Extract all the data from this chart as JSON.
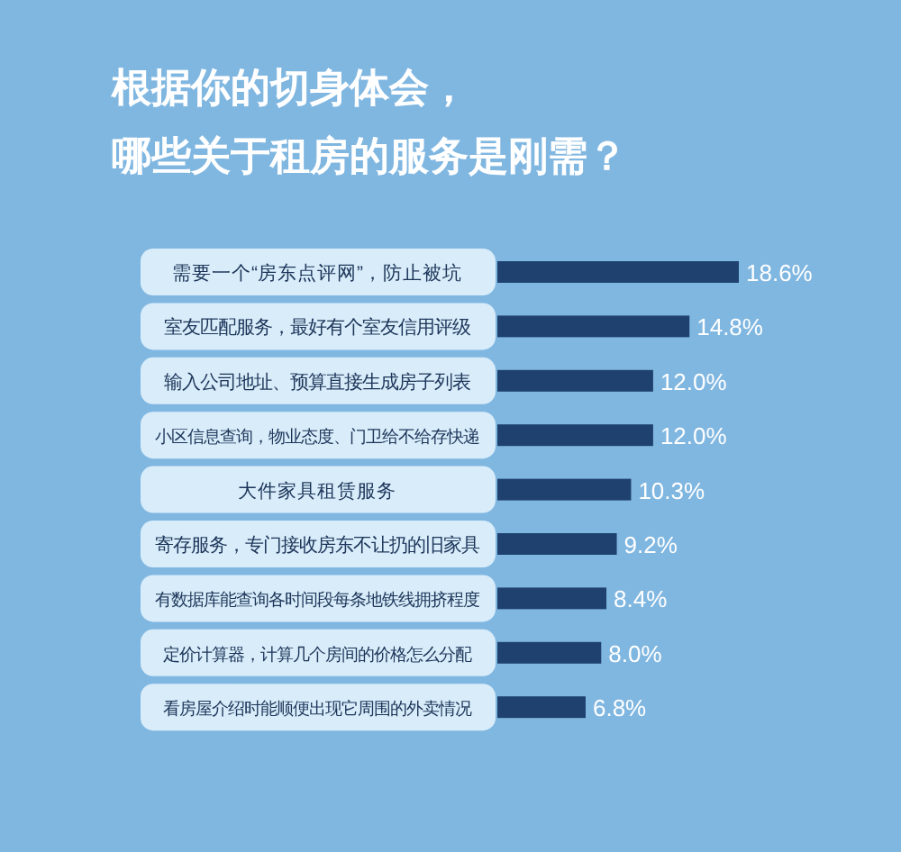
{
  "chart_data": {
    "type": "bar",
    "orientation": "horizontal",
    "title": "根据你的切身体会，",
    "subtitle": "哪些关于租房的服务是刚需？",
    "categories": [
      "需要一个“房东点评网”，防止被坑",
      "室友匹配服务，最好有个室友信用评级",
      "输入公司地址、预算直接生成房子列表",
      "小区信息查询，物业态度、门卫给不给存快递",
      "大件家具租赁服务",
      "寄存服务，专门接收房东不让扔的旧家具",
      "有数据库能查询各时间段每条地铁线拥挤程度",
      "定价计算器，计算几个房间的价格怎么分配",
      "看房屋介绍时能顺便出现它周围的外卖情况"
    ],
    "values": [
      18.6,
      14.8,
      12.0,
      12.0,
      10.3,
      9.2,
      8.4,
      8.0,
      6.8
    ],
    "value_labels": [
      "18.6%",
      "14.8%",
      "12.0%",
      "12.0%",
      "10.3%",
      "9.2%",
      "8.4%",
      "8.0%",
      "6.8%"
    ],
    "color": "#1f416f"
  }
}
